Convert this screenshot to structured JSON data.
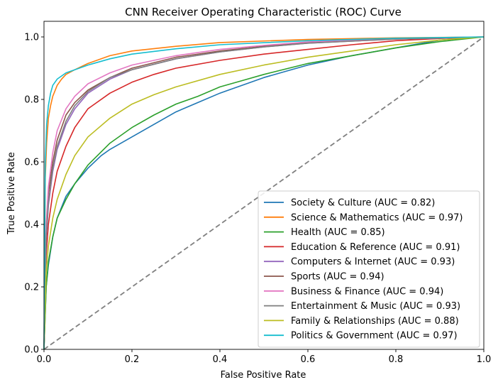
{
  "chart_data": {
    "type": "line",
    "title": "CNN Receiver Operating Characteristic (ROC) Curve",
    "xlabel": "False Positive Rate",
    "ylabel": "True Positive Rate",
    "xlim": [
      0.0,
      1.0
    ],
    "ylim": [
      0.0,
      1.05
    ],
    "xticks": [
      "0.0",
      "0.2",
      "0.4",
      "0.6",
      "0.8",
      "1.0"
    ],
    "yticks": [
      "0.0",
      "0.2",
      "0.4",
      "0.6",
      "0.8",
      "1.0"
    ],
    "grid": false,
    "legend_position": "lower-right",
    "baseline": {
      "x": [
        0.0,
        1.0
      ],
      "y": [
        0.0,
        1.0
      ],
      "color": "#808080",
      "style": "dashed"
    },
    "series": [
      {
        "name": "Society & Culture (AUC = 0.82)",
        "color": "#1f77b4",
        "x": [
          0.0,
          0.005,
          0.01,
          0.02,
          0.03,
          0.05,
          0.07,
          0.1,
          0.13,
          0.15,
          0.2,
          0.25,
          0.3,
          0.35,
          0.4,
          0.45,
          0.5,
          0.55,
          0.6,
          0.65,
          0.7,
          0.8,
          0.9,
          1.0
        ],
        "y": [
          0.0,
          0.2,
          0.27,
          0.36,
          0.42,
          0.49,
          0.53,
          0.58,
          0.62,
          0.64,
          0.68,
          0.72,
          0.76,
          0.79,
          0.82,
          0.845,
          0.87,
          0.89,
          0.91,
          0.925,
          0.94,
          0.965,
          0.99,
          1.0
        ]
      },
      {
        "name": "Science & Mathematics (AUC = 0.97)",
        "color": "#ff7f0e",
        "x": [
          0.0,
          0.003,
          0.006,
          0.01,
          0.015,
          0.02,
          0.03,
          0.04,
          0.05,
          0.07,
          0.1,
          0.15,
          0.2,
          0.3,
          0.4,
          0.6,
          0.8,
          1.0
        ],
        "y": [
          0.0,
          0.55,
          0.66,
          0.74,
          0.78,
          0.81,
          0.845,
          0.865,
          0.88,
          0.895,
          0.915,
          0.94,
          0.955,
          0.97,
          0.982,
          0.992,
          0.997,
          1.0
        ]
      },
      {
        "name": "Health (AUC = 0.85)",
        "color": "#2ca02c",
        "x": [
          0.0,
          0.005,
          0.01,
          0.02,
          0.03,
          0.05,
          0.07,
          0.1,
          0.15,
          0.2,
          0.25,
          0.3,
          0.35,
          0.4,
          0.45,
          0.5,
          0.6,
          0.7,
          0.8,
          0.9,
          1.0
        ],
        "y": [
          0.0,
          0.2,
          0.28,
          0.36,
          0.42,
          0.48,
          0.53,
          0.59,
          0.66,
          0.71,
          0.75,
          0.785,
          0.81,
          0.84,
          0.86,
          0.88,
          0.915,
          0.94,
          0.965,
          0.985,
          1.0
        ]
      },
      {
        "name": "Education & Reference (AUC = 0.91)",
        "color": "#d62728",
        "x": [
          0.0,
          0.005,
          0.01,
          0.02,
          0.03,
          0.05,
          0.07,
          0.1,
          0.15,
          0.2,
          0.25,
          0.3,
          0.4,
          0.5,
          0.6,
          0.7,
          0.8,
          0.9,
          1.0
        ],
        "y": [
          0.0,
          0.3,
          0.4,
          0.5,
          0.57,
          0.65,
          0.71,
          0.77,
          0.82,
          0.855,
          0.88,
          0.9,
          0.925,
          0.945,
          0.96,
          0.975,
          0.988,
          0.995,
          1.0
        ]
      },
      {
        "name": "Computers & Internet (AUC = 0.93)",
        "color": "#9467bd",
        "x": [
          0.0,
          0.005,
          0.01,
          0.02,
          0.03,
          0.05,
          0.07,
          0.1,
          0.15,
          0.2,
          0.3,
          0.4,
          0.5,
          0.6,
          0.8,
          1.0
        ],
        "y": [
          0.0,
          0.35,
          0.46,
          0.57,
          0.64,
          0.72,
          0.77,
          0.82,
          0.865,
          0.895,
          0.93,
          0.952,
          0.968,
          0.98,
          0.993,
          1.0
        ]
      },
      {
        "name": "Sports (AUC = 0.94)",
        "color": "#8c564b",
        "x": [
          0.0,
          0.005,
          0.01,
          0.02,
          0.03,
          0.05,
          0.07,
          0.1,
          0.15,
          0.2,
          0.3,
          0.4,
          0.5,
          0.6,
          0.8,
          1.0
        ],
        "y": [
          0.0,
          0.38,
          0.5,
          0.6,
          0.67,
          0.75,
          0.79,
          0.83,
          0.87,
          0.9,
          0.935,
          0.955,
          0.97,
          0.982,
          0.994,
          1.0
        ]
      },
      {
        "name": "Business & Finance (AUC = 0.94)",
        "color": "#e377c2",
        "x": [
          0.0,
          0.005,
          0.01,
          0.02,
          0.03,
          0.05,
          0.07,
          0.1,
          0.15,
          0.2,
          0.3,
          0.4,
          0.5,
          0.6,
          0.8,
          1.0
        ],
        "y": [
          0.0,
          0.4,
          0.52,
          0.63,
          0.7,
          0.77,
          0.81,
          0.85,
          0.885,
          0.91,
          0.94,
          0.96,
          0.973,
          0.984,
          0.995,
          1.0
        ]
      },
      {
        "name": "Entertainment & Music (AUC = 0.93)",
        "color": "#7f7f7f",
        "x": [
          0.0,
          0.005,
          0.01,
          0.02,
          0.03,
          0.05,
          0.07,
          0.1,
          0.15,
          0.2,
          0.3,
          0.4,
          0.5,
          0.6,
          0.8,
          1.0
        ],
        "y": [
          0.0,
          0.36,
          0.47,
          0.58,
          0.65,
          0.73,
          0.78,
          0.825,
          0.87,
          0.895,
          0.93,
          0.952,
          0.968,
          0.98,
          0.993,
          1.0
        ]
      },
      {
        "name": "Family & Relationships (AUC = 0.88)",
        "color": "#bcbd22",
        "x": [
          0.0,
          0.005,
          0.01,
          0.02,
          0.03,
          0.05,
          0.07,
          0.1,
          0.15,
          0.2,
          0.25,
          0.3,
          0.4,
          0.5,
          0.6,
          0.7,
          0.8,
          0.9,
          1.0
        ],
        "y": [
          0.0,
          0.25,
          0.33,
          0.42,
          0.48,
          0.56,
          0.62,
          0.68,
          0.74,
          0.785,
          0.815,
          0.84,
          0.88,
          0.91,
          0.935,
          0.955,
          0.975,
          0.99,
          1.0
        ]
      },
      {
        "name": "Politics & Government (AUC = 0.97)",
        "color": "#17becf",
        "x": [
          0.0,
          0.003,
          0.006,
          0.01,
          0.015,
          0.02,
          0.03,
          0.04,
          0.05,
          0.07,
          0.1,
          0.15,
          0.2,
          0.3,
          0.4,
          0.6,
          0.8,
          1.0
        ],
        "y": [
          0.0,
          0.6,
          0.72,
          0.78,
          0.82,
          0.845,
          0.865,
          0.875,
          0.885,
          0.895,
          0.91,
          0.93,
          0.945,
          0.962,
          0.975,
          0.988,
          0.996,
          1.0
        ]
      }
    ]
  }
}
